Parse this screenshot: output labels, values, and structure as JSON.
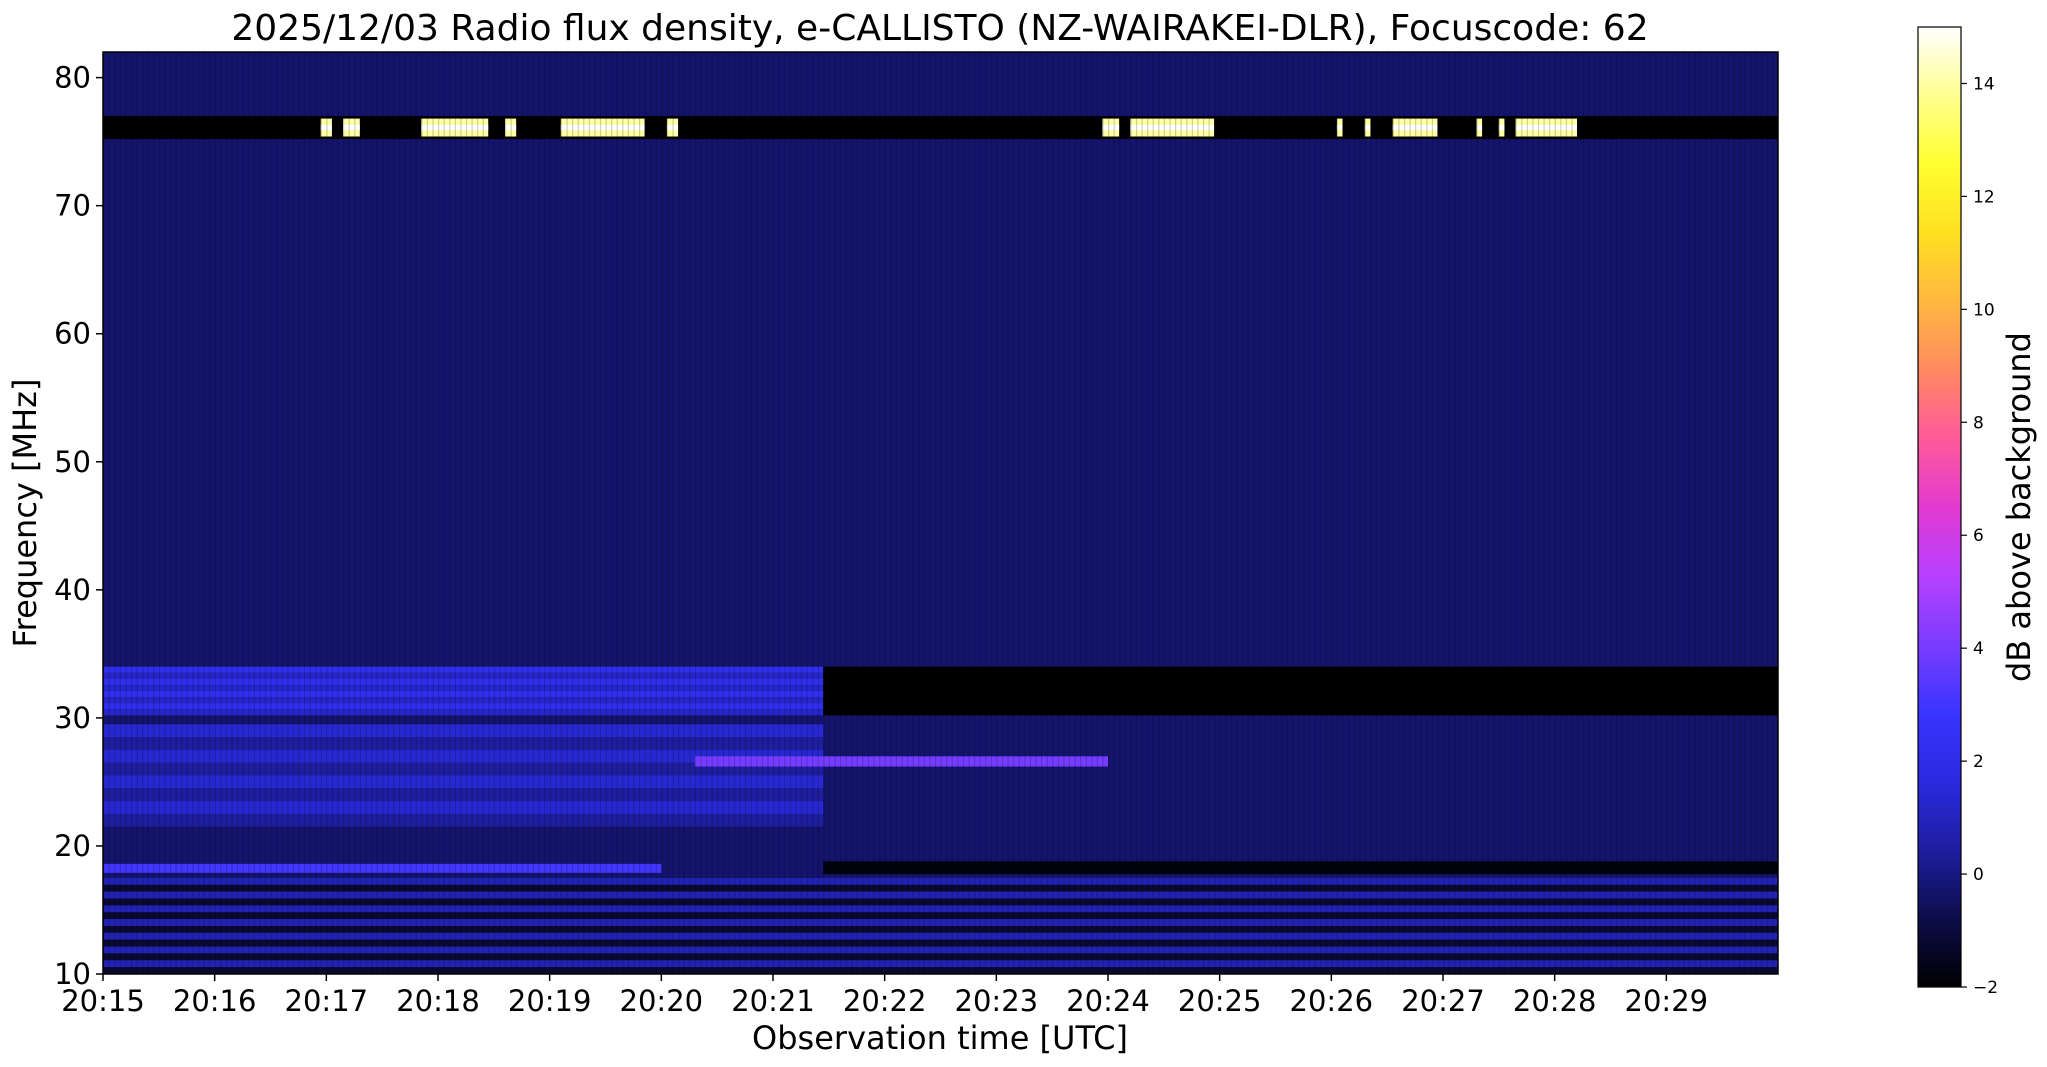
{
  "chart_data": {
    "type": "heatmap",
    "title": "2025/12/03  Radio flux density, e-CALLISTO (NZ-WAIRAKEI-DLR), Focuscode: 62",
    "xlabel": "Observation time [UTC]",
    "ylabel": "Frequency [MHz]",
    "x_ticks": [
      "20:15",
      "20:16",
      "20:17",
      "20:18",
      "20:19",
      "20:20",
      "20:21",
      "20:22",
      "20:23",
      "20:24",
      "20:25",
      "20:26",
      "20:27",
      "20:28",
      "20:29"
    ],
    "x_range": [
      "20:15",
      "20:30"
    ],
    "y_ticks": [
      10,
      20,
      30,
      40,
      50,
      60,
      70,
      80
    ],
    "ylim": [
      10,
      82
    ],
    "colorbar": {
      "label": "dB above background",
      "range": [
        -2,
        15
      ],
      "ticks": [
        -2,
        0,
        2,
        4,
        6,
        8,
        10,
        12,
        14
      ],
      "colormap": "gnuplot2",
      "stops": [
        "#000000",
        "#0d0d4a",
        "#1e1ea0",
        "#2a2ae0",
        "#3a35ff",
        "#7a3cff",
        "#b740ff",
        "#e23ad0",
        "#ff5a9a",
        "#ff8a60",
        "#ffb840",
        "#ffe020",
        "#ffff30",
        "#ffff90",
        "#ffffff"
      ]
    },
    "background_level_db": -0.3,
    "features": [
      {
        "kind": "rfi_band",
        "f_low": 75.2,
        "f_high": 77.0,
        "t_start": "20:15",
        "t_end": "20:30",
        "db": -2
      },
      {
        "kind": "bursts",
        "f_low": 75.4,
        "f_high": 76.8,
        "db": 14,
        "segments": [
          [
            "20:16.95",
            "20:17.05"
          ],
          [
            "20:17.15",
            "20:17.3"
          ],
          [
            "20:17.85",
            "20:18.45"
          ],
          [
            "20:18.6",
            "20:18.7"
          ],
          [
            "20:19.1",
            "20:19.85"
          ],
          [
            "20:20.05",
            "20:20.15"
          ],
          [
            "20:23.95",
            "20:24.1"
          ],
          [
            "20:24.2",
            "20:24.95"
          ],
          [
            "20:26.05",
            "20:26.1"
          ],
          [
            "20:26.3",
            "20:26.35"
          ],
          [
            "20:26.55",
            "20:26.95"
          ],
          [
            "20:27.3",
            "20:27.35"
          ],
          [
            "20:27.5",
            "20:27.55"
          ],
          [
            "20:27.65",
            "20:28.2"
          ]
        ]
      },
      {
        "kind": "hf_band",
        "f_low": 30.2,
        "f_high": 34.0,
        "t_start": "20:15",
        "t_end": "20:21.45",
        "db": 2.2
      },
      {
        "kind": "hf_band",
        "f_low": 21.5,
        "f_high": 29.5,
        "t_start": "20:15",
        "t_end": "20:21.45",
        "db": 1.4
      },
      {
        "kind": "dark_band",
        "f_low": 30.2,
        "f_high": 34.0,
        "t_start": "20:21.45",
        "t_end": "20:30",
        "db": -2
      },
      {
        "kind": "dark_band",
        "f_low": 17.8,
        "f_high": 18.8,
        "t_start": "20:21.45",
        "t_end": "20:30",
        "db": -1.8
      },
      {
        "kind": "line",
        "f_low": 26.2,
        "f_high": 27.0,
        "t_start": "20:20.3",
        "t_end": "20:24.0",
        "db": 4
      },
      {
        "kind": "line",
        "f_low": 17.9,
        "f_high": 18.6,
        "t_start": "20:15",
        "t_end": "20:20",
        "db": 3
      },
      {
        "kind": "texture",
        "f_low": 10,
        "f_high": 17.5,
        "t_start": "20:15",
        "t_end": "20:30",
        "db": 0.8
      }
    ]
  }
}
